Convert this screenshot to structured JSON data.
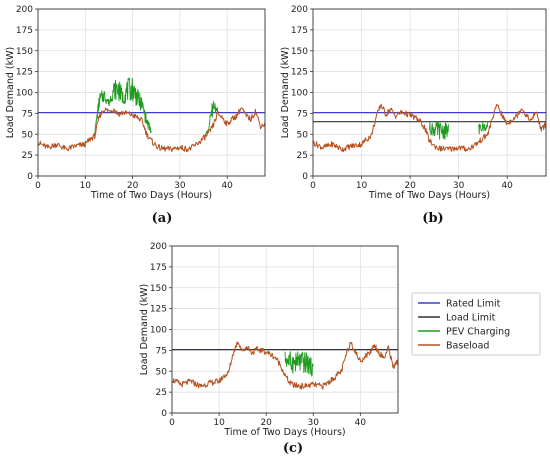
{
  "chart_data": [
    {
      "type": "line",
      "panel_label": "(a)",
      "xlabel": "Time of Two Days (Hours)",
      "ylabel": "Load Demand (kW)",
      "xlim": [
        0,
        48
      ],
      "ylim": [
        0,
        200
      ],
      "xticks": [
        "0",
        "10",
        "20",
        "30",
        "40"
      ],
      "yticks": [
        "0",
        "25",
        "50",
        "75",
        "100",
        "125",
        "150",
        "175",
        "200"
      ],
      "grid": true,
      "series": [
        {
          "name": "Rated Limit",
          "color": "#3b3bd6",
          "x": [
            0,
            48
          ],
          "y": [
            76,
            76
          ]
        },
        {
          "name": "PEV Charging",
          "color": "#1f9a1f",
          "x": [
            12,
            13,
            14,
            15,
            16,
            17,
            18,
            19,
            20,
            21,
            22,
            23,
            24,
            35,
            36,
            37,
            38
          ],
          "y": [
            55,
            100,
            105,
            92,
            115,
            118,
            102,
            117,
            120,
            105,
            95,
            72,
            58,
            45,
            58,
            95,
            82
          ]
        },
        {
          "name": "Baseload",
          "color": "#b5501e",
          "x": [
            0,
            2,
            4,
            6,
            8,
            10,
            11,
            12,
            13,
            14,
            15,
            16,
            17,
            18,
            19,
            20,
            21,
            22,
            23,
            24,
            25,
            26,
            28,
            30,
            32,
            34,
            35,
            36,
            37,
            38,
            39,
            40,
            41,
            42,
            43,
            44,
            45,
            46,
            47,
            48
          ],
          "y": [
            40,
            34,
            38,
            32,
            36,
            38,
            44,
            48,
            72,
            80,
            78,
            80,
            74,
            76,
            75,
            73,
            70,
            66,
            50,
            42,
            36,
            33,
            32,
            34,
            32,
            40,
            45,
            50,
            60,
            75,
            70,
            62,
            68,
            72,
            82,
            72,
            68,
            78,
            60,
            62
          ]
        }
      ]
    },
    {
      "type": "line",
      "panel_label": "(b)",
      "xlabel": "Time of Two Days (Hours)",
      "ylabel": "Load Demand (kW)",
      "xlim": [
        0,
        48
      ],
      "ylim": [
        0,
        200
      ],
      "xticks": [
        "0",
        "10",
        "20",
        "30",
        "40"
      ],
      "yticks": [
        "0",
        "25",
        "50",
        "75",
        "100",
        "125",
        "150",
        "175",
        "200"
      ],
      "grid": true,
      "series": [
        {
          "name": "Rated Limit",
          "color": "#3b3bd6",
          "x": [
            0,
            48
          ],
          "y": [
            76,
            76
          ]
        },
        {
          "name": "Load Limit",
          "color": "#333333",
          "x": [
            0,
            48
          ],
          "y": [
            65,
            65
          ]
        },
        {
          "name": "PEV Charging",
          "color": "#1f9a1f",
          "x": [
            24,
            25,
            26,
            27,
            28,
            34,
            35,
            36
          ],
          "y": [
            65,
            65,
            65,
            65,
            65,
            62,
            65,
            64
          ]
        },
        {
          "name": "Baseload",
          "color": "#b5501e",
          "x": [
            0,
            2,
            4,
            6,
            8,
            10,
            11,
            12,
            13,
            14,
            15,
            16,
            17,
            18,
            19,
            20,
            21,
            22,
            23,
            24,
            25,
            26,
            28,
            30,
            32,
            34,
            35,
            36,
            37,
            38,
            39,
            40,
            41,
            42,
            43,
            44,
            45,
            46,
            47,
            48
          ],
          "y": [
            40,
            34,
            38,
            32,
            36,
            38,
            44,
            48,
            70,
            86,
            74,
            80,
            72,
            76,
            75,
            73,
            70,
            66,
            58,
            42,
            36,
            33,
            32,
            34,
            32,
            40,
            45,
            50,
            70,
            86,
            72,
            62,
            68,
            72,
            82,
            72,
            66,
            78,
            55,
            62
          ]
        }
      ]
    },
    {
      "type": "line",
      "panel_label": "(c)",
      "xlabel": "Time of Two Days (Hours)",
      "ylabel": "Load Demand (kW)",
      "xlim": [
        0,
        48
      ],
      "ylim": [
        0,
        200
      ],
      "xticks": [
        "0",
        "10",
        "20",
        "30",
        "40"
      ],
      "yticks": [
        "0",
        "25",
        "50",
        "75",
        "100",
        "125",
        "150",
        "175",
        "200"
      ],
      "grid": true,
      "legend": {
        "placement": "right",
        "entries": [
          {
            "label": "Rated Limit",
            "color": "#3b3bd6"
          },
          {
            "label": "Load Limit",
            "color": "#333333"
          },
          {
            "label": "PEV Charging",
            "color": "#1f9a1f"
          },
          {
            "label": "Baseload",
            "color": "#b5501e"
          }
        ]
      },
      "series": [
        {
          "name": "Rated Limit",
          "color": "#3b3bd6",
          "x": [
            0,
            48
          ],
          "y": [
            76,
            76
          ]
        },
        {
          "name": "Load Limit",
          "color": "#333333",
          "x": [
            0,
            48
          ],
          "y": [
            76,
            76
          ]
        },
        {
          "name": "PEV Charging",
          "color": "#1f9a1f",
          "x": [
            24,
            25,
            26,
            27,
            28,
            29,
            30
          ],
          "y": [
            75,
            74,
            73,
            75,
            74,
            72,
            60
          ]
        },
        {
          "name": "Baseload",
          "color": "#b5501e",
          "x": [
            0,
            2,
            4,
            6,
            8,
            10,
            11,
            12,
            13,
            14,
            15,
            16,
            17,
            18,
            19,
            20,
            21,
            22,
            23,
            24,
            25,
            26,
            28,
            30,
            32,
            34,
            35,
            36,
            37,
            38,
            39,
            40,
            41,
            42,
            43,
            44,
            45,
            46,
            47,
            48
          ],
          "y": [
            40,
            34,
            38,
            32,
            36,
            38,
            44,
            48,
            72,
            86,
            74,
            80,
            72,
            76,
            75,
            73,
            70,
            66,
            58,
            45,
            36,
            33,
            32,
            34,
            32,
            40,
            45,
            50,
            70,
            86,
            72,
            62,
            68,
            72,
            82,
            72,
            66,
            78,
            55,
            62
          ]
        }
      ]
    }
  ]
}
